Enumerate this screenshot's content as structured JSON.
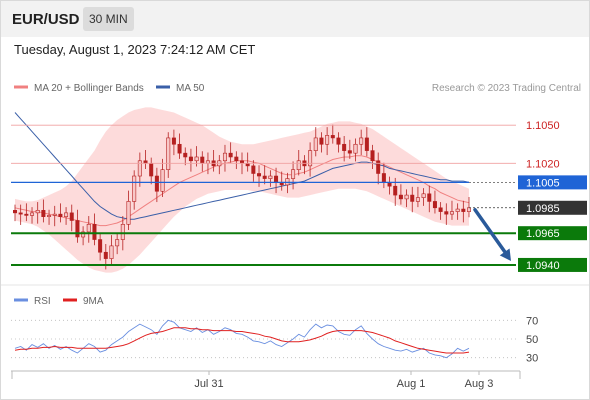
{
  "header": {
    "symbol": "EUR/USD",
    "timeframe": "30 MIN",
    "datetime": "Tuesday, August 1, 2023 7:24:12 AM CET"
  },
  "legend": {
    "ma20_label": "MA 20 + Bollinger Bands",
    "ma50_label": "MA 50",
    "copyright": "Research © 2023 Trading Central"
  },
  "rsi_legend": {
    "rsi_label": "RSI",
    "ma_label": "9MA"
  },
  "colors": {
    "ma20": "#f08080",
    "bollinger_fill": "#fdd5d5",
    "ma50": "#3a5fa8",
    "bull": "#f8c8c8",
    "bear": "#b52020",
    "green": "#0b7a0b",
    "blue": "#1f64d6",
    "dark": "#333333",
    "rsi": "#6a8fe0",
    "rsi_ma": "#e02020",
    "arrow": "#2a5a9a",
    "resistance_text": "#cc2222"
  },
  "chart_data": [
    {
      "type": "candlestick",
      "title": "EUR/USD 30 MIN",
      "ylim": [
        1.0925,
        1.1073
      ],
      "x_ticks": [
        "Jul 31",
        "Aug 1",
        "Aug 3"
      ],
      "levels": [
        {
          "label": "1.1050",
          "value": 1.105,
          "kind": "resistance"
        },
        {
          "label": "1.1020",
          "value": 1.102,
          "kind": "resistance"
        },
        {
          "label": "1.1005",
          "value": 1.1005,
          "kind": "pivot"
        },
        {
          "label": "1.0985",
          "value": 1.0985,
          "kind": "last"
        },
        {
          "label": "1.0965",
          "value": 1.0965,
          "kind": "support"
        },
        {
          "label": "1.0940",
          "value": 1.094,
          "kind": "support"
        }
      ],
      "series": [
        {
          "name": "EUR/USD",
          "close": [
            1.0981,
            1.098,
            1.0979,
            1.0981,
            1.0983,
            1.0978,
            1.0979,
            1.098,
            1.0978,
            1.0981,
            1.0975,
            1.0962,
            1.0966,
            1.0972,
            1.096,
            1.095,
            1.0945,
            1.0955,
            1.096,
            1.0972,
            1.099,
            1.101,
            1.1022,
            1.102,
            1.101,
            1.0998,
            1.1015,
            1.104,
            1.1035,
            1.1028,
            1.1025,
            1.1022,
            1.1025,
            1.102,
            1.1022,
            1.1018,
            1.1022,
            1.1028,
            1.1025,
            1.1022,
            1.102,
            1.1018,
            1.1012,
            1.101,
            1.1008,
            1.101,
            1.1005,
            1.1003,
            1.1008,
            1.1015,
            1.1022,
            1.1018,
            1.103,
            1.104,
            1.1035,
            1.1042,
            1.104,
            1.1035,
            1.103,
            1.1028,
            1.1035,
            1.104,
            1.103,
            1.1022,
            1.1012,
            1.1005,
            1.1002,
            1.0995,
            1.0992,
            1.0995,
            1.099,
            1.0993,
            1.0996,
            1.099,
            1.0985,
            1.0982,
            1.098,
            1.0982,
            1.0984,
            1.0982,
            1.0985
          ]
        },
        {
          "name": "MA 20",
          "values": [
            1.0985,
            1.0984,
            1.0983,
            1.0982,
            1.0982,
            1.0981,
            1.098,
            1.0979,
            1.0978,
            1.0977,
            1.0976,
            1.0975,
            1.0974,
            1.0973,
            1.0972,
            1.0971,
            1.0971,
            1.0972,
            1.0973,
            1.0975,
            1.0978,
            1.0981,
            1.0984,
            1.0987,
            1.099,
            1.0993,
            1.0996,
            1.0999,
            1.1002,
            1.1005,
            1.1007,
            1.1009,
            1.1011,
            1.1013,
            1.1015,
            1.1017,
            1.1019,
            1.102,
            1.1021,
            1.1022,
            1.1022,
            1.1022,
            1.1021,
            1.102,
            1.1018,
            1.1016,
            1.1014,
            1.1012,
            1.1011,
            1.1011,
            1.1012,
            1.1013,
            1.1015,
            1.1017,
            1.1019,
            1.1021,
            1.1023,
            1.1024,
            1.1025,
            1.1025,
            1.1026,
            1.1026,
            1.1025,
            1.1023,
            1.1021,
            1.1019,
            1.1017,
            1.1015,
            1.1013,
            1.1011,
            1.1009,
            1.1007,
            1.1005,
            1.1002,
            1.1,
            1.0997,
            1.0995,
            1.0993,
            1.0991,
            1.099,
            1.0989
          ]
        },
        {
          "name": "MA 50",
          "values": [
            1.106,
            1.1055,
            1.105,
            1.1045,
            1.104,
            1.1035,
            1.103,
            1.1025,
            1.102,
            1.1015,
            1.101,
            1.1005,
            1.1,
            1.0995,
            1.099,
            1.0986,
            1.0983,
            1.098,
            1.0978,
            1.0977,
            1.0976,
            1.0976,
            1.0977,
            1.0978,
            1.0979,
            1.098,
            1.0981,
            1.0982,
            1.0983,
            1.0984,
            1.0985,
            1.0986,
            1.0987,
            1.0988,
            1.0989,
            1.099,
            1.0991,
            1.0992,
            1.0993,
            1.0994,
            1.0995,
            1.0996,
            1.0997,
            1.0998,
            1.0999,
            1.1,
            1.1001,
            1.1002,
            1.1003,
            1.1004,
            1.1005,
            1.1006,
            1.1008,
            1.101,
            1.1012,
            1.1014,
            1.1016,
            1.1017,
            1.1018,
            1.1019,
            1.102,
            1.1021,
            1.1021,
            1.102,
            1.1019,
            1.1018,
            1.1016,
            1.1015,
            1.1014,
            1.1013,
            1.1012,
            1.1011,
            1.101,
            1.1009,
            1.1008,
            1.1007,
            1.1007,
            1.1006,
            1.1006,
            1.1006,
            1.1005
          ]
        },
        {
          "name": "Bollinger upper",
          "values": [
            1.0992,
            1.0991,
            1.099,
            1.099,
            1.0991,
            1.0993,
            1.0995,
            1.0997,
            1.0999,
            1.1002,
            1.1006,
            1.1012,
            1.1018,
            1.1024,
            1.103,
            1.1038,
            1.1045,
            1.105,
            1.1054,
            1.1057,
            1.106,
            1.1062,
            1.1063,
            1.1064,
            1.1064,
            1.1063,
            1.1062,
            1.1061,
            1.106,
            1.1058,
            1.1056,
            1.1054,
            1.1052,
            1.105,
            1.1047,
            1.1044,
            1.1041,
            1.1039,
            1.1037,
            1.1036,
            1.1035,
            1.1035,
            1.1035,
            1.1036,
            1.1037,
            1.1038,
            1.1039,
            1.104,
            1.1041,
            1.1042,
            1.1043,
            1.1044,
            1.1045,
            1.1047,
            1.1049,
            1.1051,
            1.1052,
            1.1053,
            1.1053,
            1.1053,
            1.1052,
            1.1051,
            1.1049,
            1.1047,
            1.1044,
            1.1041,
            1.1038,
            1.1035,
            1.1032,
            1.1029,
            1.1026,
            1.1023,
            1.102,
            1.1017,
            1.1014,
            1.1011,
            1.1008,
            1.1006,
            1.1004,
            1.1002,
            1.1
          ]
        },
        {
          "name": "Bollinger lower",
          "values": [
            1.0975,
            1.0974,
            1.0973,
            1.0972,
            1.097,
            1.0967,
            1.0964,
            1.096,
            1.0956,
            1.0952,
            1.0948,
            1.0944,
            1.0941,
            1.0938,
            1.0936,
            1.0935,
            1.0934,
            1.0934,
            1.0935,
            1.0937,
            1.094,
            1.0944,
            1.0948,
            1.0953,
            1.0958,
            1.0963,
            1.0968,
            1.0973,
            1.0978,
            1.0982,
            1.0986,
            1.0989,
            1.0992,
            1.0994,
            1.0996,
            1.0997,
            1.0998,
            1.0999,
            1.0999,
            1.0999,
            1.0999,
            1.0999,
            1.0998,
            1.0998,
            1.0997,
            1.0996,
            1.0995,
            1.0994,
            1.0993,
            1.0993,
            1.0993,
            1.0994,
            1.0995,
            1.0996,
            1.0997,
            1.0998,
            1.0999,
            1.1,
            1.1,
            1.1,
            1.1,
            1.0999,
            1.0998,
            1.0996,
            1.0994,
            1.0992,
            1.099,
            1.0988,
            1.0986,
            1.0984,
            1.0982,
            1.098,
            1.0978,
            1.0976,
            1.0974,
            1.0973,
            1.0972,
            1.0971,
            1.0971,
            1.0971,
            1.0971
          ]
        }
      ],
      "projection": {
        "from": 1.0985,
        "to": 1.094,
        "direction": "down"
      }
    },
    {
      "type": "line",
      "title": "RSI",
      "ylim": [
        20,
        80
      ],
      "y_ticks": [
        70,
        50,
        30
      ],
      "series": [
        {
          "name": "RSI",
          "values": [
            40,
            42,
            38,
            44,
            41,
            45,
            40,
            43,
            39,
            42,
            38,
            35,
            40,
            45,
            42,
            36,
            38,
            44,
            48,
            52,
            58,
            62,
            66,
            63,
            60,
            55,
            64,
            70,
            68,
            62,
            60,
            58,
            62,
            57,
            60,
            55,
            58,
            62,
            60,
            56,
            55,
            52,
            48,
            47,
            45,
            48,
            44,
            42,
            46,
            50,
            55,
            52,
            60,
            66,
            62,
            65,
            64,
            58,
            55,
            54,
            60,
            64,
            56,
            50,
            45,
            42,
            40,
            38,
            37,
            39,
            36,
            38,
            40,
            35,
            33,
            32,
            30,
            34,
            40,
            37,
            40
          ]
        },
        {
          "name": "9MA",
          "values": [
            38,
            39,
            39,
            40,
            40,
            41,
            41,
            42,
            41,
            41,
            41,
            40,
            40,
            40,
            40,
            40,
            40,
            41,
            42,
            43,
            45,
            48,
            51,
            54,
            56,
            57,
            58,
            60,
            62,
            62,
            62,
            61,
            61,
            60,
            60,
            59,
            59,
            59,
            59,
            58,
            58,
            57,
            56,
            55,
            53,
            52,
            50,
            48,
            47,
            47,
            47,
            48,
            49,
            51,
            53,
            56,
            58,
            59,
            59,
            59,
            59,
            59,
            58,
            57,
            55,
            53,
            51,
            48,
            46,
            44,
            42,
            40,
            39,
            38,
            37,
            36,
            35,
            35,
            35,
            35,
            36
          ]
        }
      ]
    }
  ]
}
